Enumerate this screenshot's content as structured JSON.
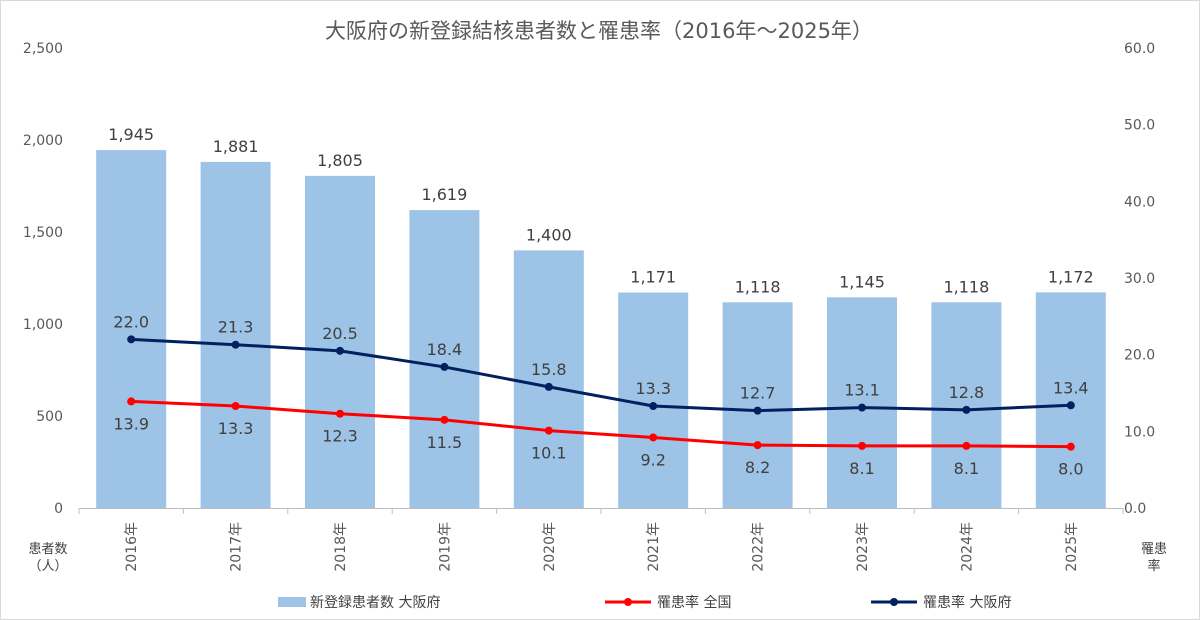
{
  "chart_data": {
    "type": "bar",
    "title": "大阪府の新登録結核患者数と罹患率（2016年～2025年）",
    "categories": [
      "2016年",
      "2017年",
      "2018年",
      "2019年",
      "2020年",
      "2021年",
      "2022年",
      "2023年",
      "2024年",
      "2025年"
    ],
    "bar_labels": [
      "1,945",
      "1,881",
      "1,805",
      "1,619",
      "1,400",
      "1,171",
      "1,118",
      "1,145",
      "1,118",
      "1,172"
    ],
    "y_left_label_lines": [
      "患者数",
      "（人）"
    ],
    "y_right_label_lines": [
      "罹患",
      "率"
    ],
    "y_left_ticks": [
      "0",
      "500",
      "1,000",
      "1,500",
      "2,000",
      "2,500"
    ],
    "y_right_ticks": [
      "0.0",
      "10.0",
      "20.0",
      "30.0",
      "40.0",
      "50.0",
      "60.0"
    ],
    "ylim_left": [
      0,
      2500
    ],
    "ylim_right": [
      0,
      60
    ],
    "grid": false,
    "legend_position": "bottom",
    "series": [
      {
        "name": "新登録患者数 大阪府",
        "kind": "bar",
        "axis": "left",
        "color": "#9dc3e6",
        "values": [
          1945,
          1881,
          1805,
          1619,
          1400,
          1171,
          1118,
          1145,
          1118,
          1172
        ]
      },
      {
        "name": "罹患率 全国",
        "kind": "line",
        "axis": "right",
        "color": "#ff0000",
        "values": [
          13.9,
          13.3,
          12.3,
          11.5,
          10.1,
          9.2,
          8.2,
          8.1,
          8.1,
          8.0
        ],
        "labels": [
          "13.9",
          "13.3",
          "12.3",
          "11.5",
          "10.1",
          "9.2",
          "8.2",
          "8.1",
          "8.1",
          "8.0"
        ],
        "label_placement": "below"
      },
      {
        "name": "罹患率 大阪府",
        "kind": "line",
        "axis": "right",
        "color": "#002060",
        "values": [
          22.0,
          21.3,
          20.5,
          18.4,
          15.8,
          13.3,
          12.7,
          13.1,
          12.8,
          13.4
        ],
        "labels": [
          "22.0",
          "21.3",
          "20.5",
          "18.4",
          "15.8",
          "13.3",
          "12.7",
          "13.1",
          "12.8",
          "13.4"
        ],
        "label_placement": "above"
      }
    ]
  }
}
